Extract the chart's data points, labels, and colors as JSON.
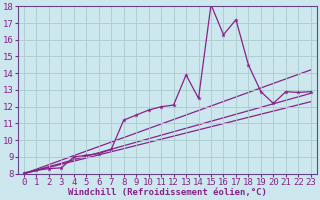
{
  "xlabel": "Windchill (Refroidissement éolien,°C)",
  "ylabel": "",
  "background_color": "#cce8ee",
  "grid_color": "#aacccc",
  "line_color": "#882288",
  "spine_color": "#664488",
  "xlim": [
    -0.5,
    23.5
  ],
  "ylim": [
    8,
    18
  ],
  "xticks": [
    0,
    1,
    2,
    3,
    4,
    5,
    6,
    7,
    8,
    9,
    10,
    11,
    12,
    13,
    14,
    15,
    16,
    17,
    18,
    19,
    20,
    21,
    22,
    23
  ],
  "yticks": [
    8,
    9,
    10,
    11,
    12,
    13,
    14,
    15,
    16,
    17,
    18
  ],
  "main_x": [
    0,
    1,
    2,
    3,
    4,
    5,
    6,
    7,
    8,
    9,
    10,
    11,
    12,
    13,
    14,
    15,
    16,
    17,
    18,
    19,
    20,
    21,
    22,
    23
  ],
  "main_y": [
    8.05,
    8.2,
    8.3,
    8.35,
    9.0,
    9.1,
    9.2,
    9.45,
    11.2,
    11.5,
    11.8,
    12.0,
    12.1,
    13.9,
    12.5,
    18.1,
    16.3,
    17.2,
    14.5,
    12.9,
    12.2,
    12.9,
    12.85,
    12.9
  ],
  "line1_x": [
    0,
    23
  ],
  "line1_y": [
    8.0,
    14.2
  ],
  "line2_x": [
    0,
    23
  ],
  "line2_y": [
    8.0,
    12.8
  ],
  "line3_x": [
    0,
    23
  ],
  "line3_y": [
    8.0,
    12.3
  ],
  "tick_fontsize": 6.5,
  "xlabel_fontsize": 6.5
}
